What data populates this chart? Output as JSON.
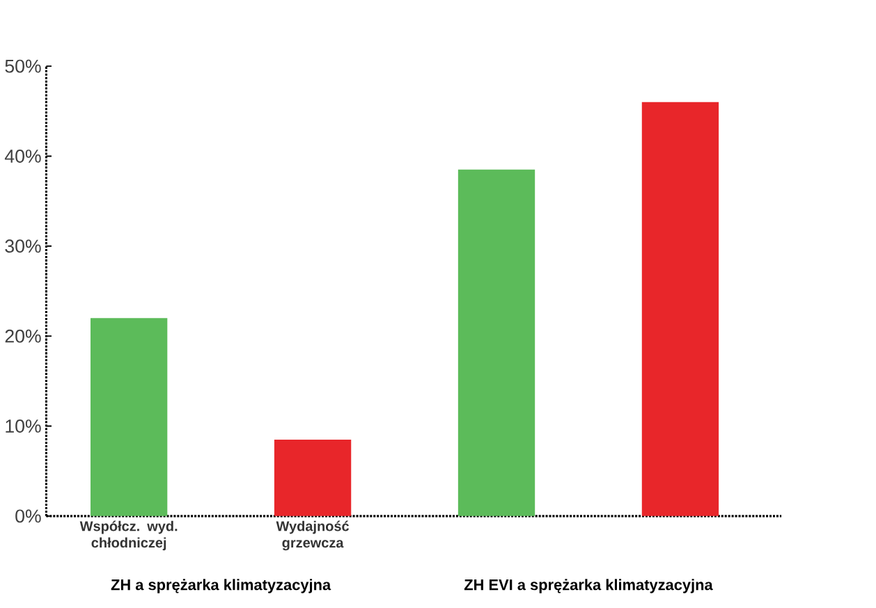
{
  "chart_data": {
    "type": "bar",
    "categories": [
      "Współcz. wyd. chłodniczej",
      "Wydajność grzewcza",
      null,
      null
    ],
    "values": [
      22,
      8.5,
      38.5,
      46
    ],
    "colors": [
      "#5cbb5a",
      "#e8262a",
      "#5cbb5a",
      "#e8262a"
    ],
    "ylim": [
      0,
      50
    ],
    "yticks": [
      {
        "value": 0,
        "label": "0%"
      },
      {
        "value": 10,
        "label": "10%"
      },
      {
        "value": 20,
        "label": "20%"
      },
      {
        "value": 30,
        "label": "30%"
      },
      {
        "value": 40,
        "label": "40%"
      },
      {
        "value": 50,
        "label": "50%"
      }
    ],
    "annotations": [
      "ZH a sprężarka klimatyzacyjna",
      "ZH EVI a sprężarka klimatyzacyjna"
    ],
    "grid": false
  }
}
